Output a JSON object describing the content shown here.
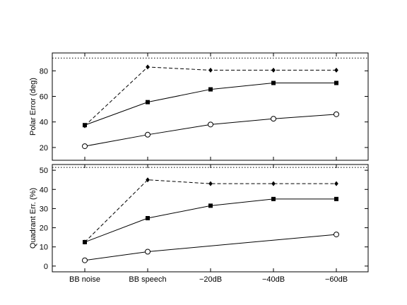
{
  "chart_data": [
    {
      "type": "line",
      "title": "",
      "xlabel": "",
      "ylabel": "Polar Error (deg)",
      "categories": [
        "BB noise",
        "BB speech",
        "−20dB",
        "−40dB",
        "−60dB"
      ],
      "ylim": [
        10,
        94
      ],
      "yticks": [
        20,
        40,
        60,
        80
      ],
      "reference_line": 90,
      "series": [
        {
          "style": "dashed",
          "marker": "diamond",
          "values": [
            37,
            83,
            80.5,
            80.5,
            80.5
          ]
        },
        {
          "style": "solid",
          "marker": "square",
          "values": [
            37.5,
            55.5,
            65.5,
            70.5,
            70.5
          ]
        },
        {
          "style": "solid",
          "marker": "circle",
          "values": [
            21,
            30,
            38,
            42.5,
            46
          ]
        }
      ]
    },
    {
      "type": "line",
      "title": "",
      "xlabel": "",
      "ylabel": "Quadrant Err. (%)",
      "categories": [
        "BB noise",
        "BB speech",
        "−20dB",
        "−40dB",
        "−60dB"
      ],
      "ylim": [
        -3,
        53
      ],
      "yticks": [
        0,
        10,
        20,
        30,
        40,
        50
      ],
      "reference_line": 51.5,
      "series": [
        {
          "style": "dashed",
          "marker": "diamond",
          "values": [
            12.5,
            45,
            43,
            43,
            43
          ]
        },
        {
          "style": "solid",
          "marker": "square",
          "values": [
            12.5,
            25,
            31.5,
            35,
            35
          ]
        },
        {
          "style": "solid",
          "marker": "circle",
          "values": [
            3,
            7.5,
            null,
            null,
            16.5
          ]
        }
      ]
    }
  ]
}
